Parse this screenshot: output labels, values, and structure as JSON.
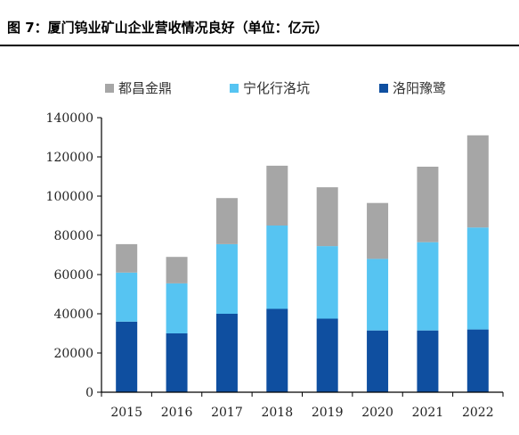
{
  "figure_title": "图 7：厦门钨业矿山企业营收情况良好（单位：亿元）",
  "colors": {
    "都昌金鼎": "#a6a6a6",
    "宁化行洛坑": "#56c4f2",
    "洛阳豫鹭": "#0f4fa0"
  },
  "chart_data": {
    "type": "bar",
    "stacked": true,
    "categories": [
      "2015",
      "2016",
      "2017",
      "2018",
      "2019",
      "2020",
      "2021",
      "2022"
    ],
    "series": [
      {
        "name": "洛阳豫鹭",
        "values": [
          36000,
          30000,
          40000,
          42500,
          37500,
          31500,
          31500,
          32000
        ]
      },
      {
        "name": "宁化行洛坑",
        "values": [
          25000,
          25500,
          35500,
          42500,
          37000,
          36500,
          45000,
          52000
        ]
      },
      {
        "name": "都昌金鼎",
        "values": [
          14500,
          13500,
          23500,
          30500,
          30000,
          28500,
          38500,
          47000
        ]
      }
    ],
    "legend_order": [
      "都昌金鼎",
      "宁化行洛坑",
      "洛阳豫鹭"
    ],
    "yticks": [
      "0",
      "20000",
      "40000",
      "60000",
      "80000",
      "100000",
      "120000",
      "140000"
    ],
    "ylim": [
      0,
      140000
    ],
    "legend_position": "top",
    "grid": false
  }
}
